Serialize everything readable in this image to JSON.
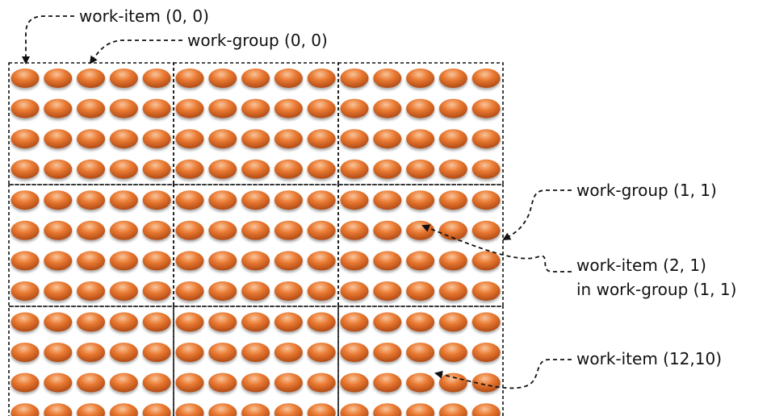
{
  "grid": {
    "groups_x": 3,
    "groups_y": 3,
    "items_per_group_x": 5,
    "items_per_group_y": 4,
    "item_color": "#e8742c",
    "item_highlight_color": "#f6b07a",
    "item_shadow_color": "#a84414",
    "border_color": "#111111"
  },
  "labels": {
    "work_item_0_0": "work-item (0, 0)",
    "work_group_0_0": "work-group (0, 0)",
    "work_group_1_1": "work-group (1, 1)",
    "work_item_2_1_line1": "work-item (2, 1)",
    "work_item_2_1_line2": "in work-group (1, 1)",
    "work_item_12_10": "work-item (12,10)"
  }
}
